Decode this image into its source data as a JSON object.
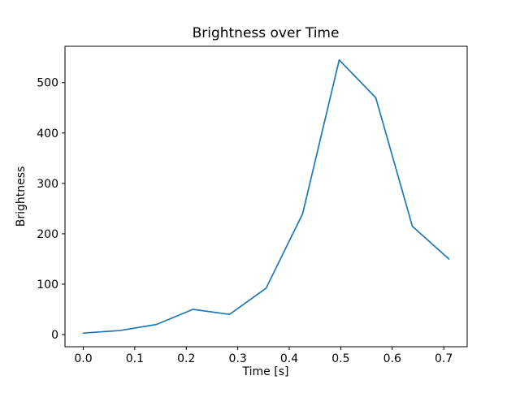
{
  "chart_data": {
    "type": "line",
    "title": "Brightness over Time",
    "xlabel": "Time [s]",
    "ylabel": "Brightness",
    "x": [
      0.0,
      0.071,
      0.142,
      0.213,
      0.284,
      0.355,
      0.426,
      0.497,
      0.568,
      0.639,
      0.71
    ],
    "y": [
      3,
      8,
      20,
      50,
      40,
      92,
      240,
      545,
      470,
      215,
      150
    ],
    "xticks": [
      0.0,
      0.1,
      0.2,
      0.3,
      0.4,
      0.5,
      0.6,
      0.7
    ],
    "yticks": [
      0,
      100,
      200,
      300,
      400,
      500
    ],
    "xlim": [
      -0.0355,
      0.7455
    ],
    "ylim": [
      -24.1,
      572.1
    ],
    "line_color": "#1f77b4",
    "axis_color": "#000000",
    "background": "#ffffff",
    "grid": false,
    "legend_position": "none"
  }
}
